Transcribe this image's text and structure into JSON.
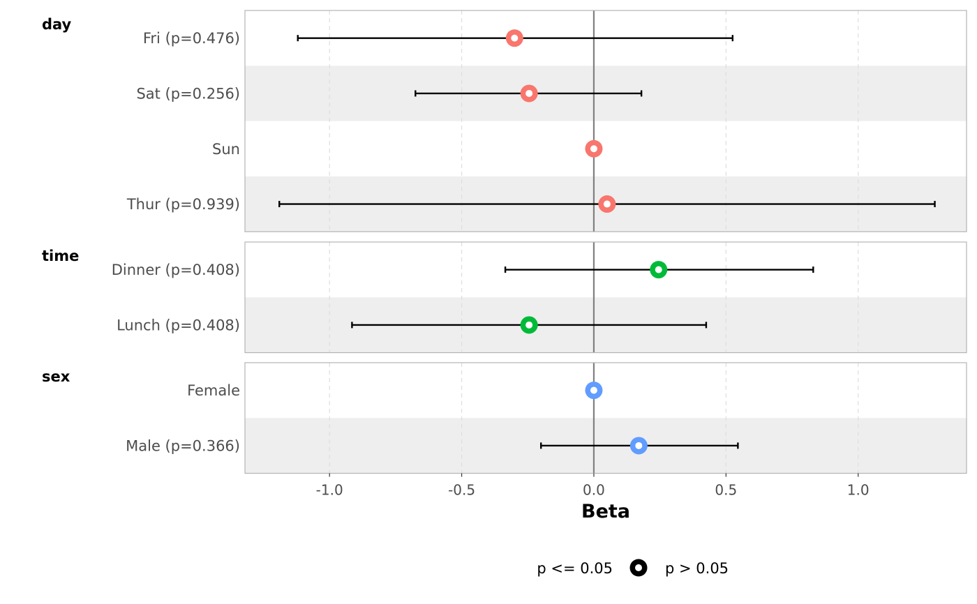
{
  "chart_data": {
    "type": "forest",
    "xlabel": "Beta",
    "xlim": [
      -1.32,
      1.41
    ],
    "xticks": [
      -1.0,
      -0.5,
      0.0,
      0.5,
      1.0
    ],
    "xtick_labels": [
      "-1.0",
      "-0.5",
      "0.0",
      "0.5",
      "1.0"
    ],
    "reference_line": 0.0,
    "grid": "vertical dashed",
    "groups": [
      {
        "name": "day",
        "color": "#F8766D",
        "rows": [
          {
            "label": "Fri (p=0.476)",
            "estimate": -0.3,
            "ci_low": -1.12,
            "ci_high": 0.525
          },
          {
            "label": "Sat (p=0.256)",
            "estimate": -0.245,
            "ci_low": -0.675,
            "ci_high": 0.18
          },
          {
            "label": "Sun",
            "estimate": 0.0,
            "ci_low": null,
            "ci_high": null
          },
          {
            "label": "Thur (p=0.939)",
            "estimate": 0.05,
            "ci_low": -1.19,
            "ci_high": 1.29
          }
        ]
      },
      {
        "name": "time",
        "color": "#00BA38",
        "rows": [
          {
            "label": "Dinner (p=0.408)",
            "estimate": 0.245,
            "ci_low": -0.335,
            "ci_high": 0.83
          },
          {
            "label": "Lunch (p=0.408)",
            "estimate": -0.245,
            "ci_low": -0.915,
            "ci_high": 0.425
          }
        ]
      },
      {
        "name": "sex",
        "color": "#619CFF",
        "rows": [
          {
            "label": "Female",
            "estimate": 0.0,
            "ci_low": null,
            "ci_high": null
          },
          {
            "label": "Male (p=0.366)",
            "estimate": 0.17,
            "ci_low": -0.2,
            "ci_high": 0.545
          }
        ]
      }
    ],
    "legend": {
      "position": "bottom",
      "items": [
        {
          "label": "p <= 0.05",
          "marker": "filled-circle"
        },
        {
          "label": "p > 0.05",
          "marker": "hollow-circle"
        }
      ]
    }
  }
}
